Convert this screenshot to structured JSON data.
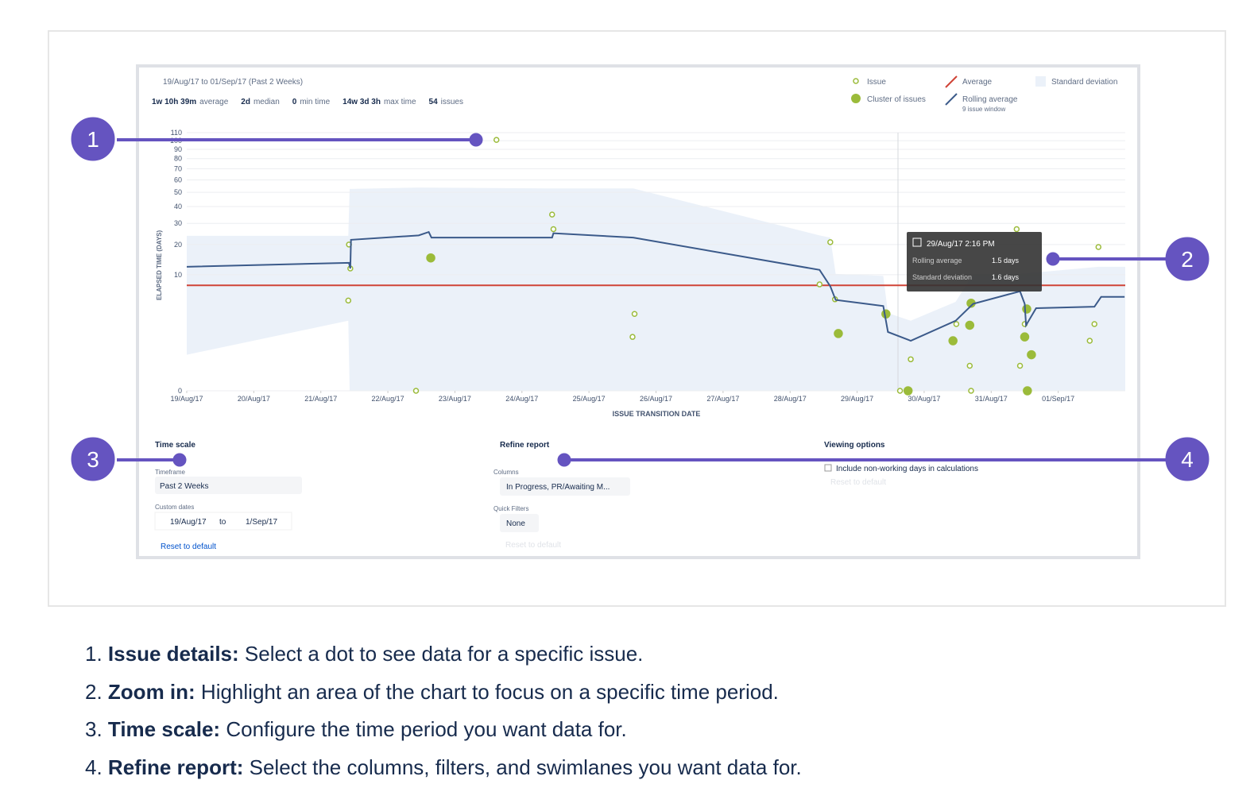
{
  "chart_data": {
    "type": "control",
    "subtitle": "19/Aug/17 to 01/Sep/17 (Past 2 Weeks)",
    "stats": [
      {
        "value": "1w 10h 39m",
        "label": "average"
      },
      {
        "value": "2d",
        "label": "median"
      },
      {
        "value": "0",
        "label": "min time"
      },
      {
        "value": "14w 3d 3h",
        "label": "max time"
      },
      {
        "value": "54",
        "label": "issues"
      }
    ],
    "y_label": "ELAPSED TIME (DAYS)",
    "x_label": "ISSUE TRANSITION DATE",
    "y_scale": "cube-root",
    "ylim": [
      0,
      110
    ],
    "yticks": [
      0,
      10,
      20,
      30,
      40,
      50,
      60,
      70,
      80,
      90,
      100,
      110
    ],
    "xlim": [
      0,
      14
    ],
    "xticks": [
      {
        "value": 0,
        "label": "19/Aug/17"
      },
      {
        "value": 1,
        "label": "20/Aug/17"
      },
      {
        "value": 2,
        "label": "21/Aug/17"
      },
      {
        "value": 3,
        "label": "22/Aug/17"
      },
      {
        "value": 4,
        "label": "23/Aug/17"
      },
      {
        "value": 5,
        "label": "24/Aug/17"
      },
      {
        "value": 6,
        "label": "25/Aug/17"
      },
      {
        "value": 7,
        "label": "26/Aug/17"
      },
      {
        "value": 8,
        "label": "27/Aug/17"
      },
      {
        "value": 9,
        "label": "28/Aug/17"
      },
      {
        "value": 10,
        "label": "29/Aug/17"
      },
      {
        "value": 11,
        "label": "30/Aug/17"
      },
      {
        "value": 12,
        "label": "31/Aug/17"
      },
      {
        "value": 13,
        "label": "01/Sep/17"
      }
    ],
    "grid": true,
    "series": [
      {
        "name": "Issue",
        "color": "#9bbb3a",
        "x": [
          4.62,
          2.42,
          2.44,
          2.41,
          3.42,
          5.45,
          5.47,
          6.68,
          6.65,
          9.6,
          9.44,
          9.67,
          10.8,
          10.64,
          11.48,
          11.68,
          11.7,
          12.38,
          12.5,
          12.43,
          13.6,
          13.54,
          13.47
        ],
        "values": [
          101,
          20,
          11.7,
          4.7,
          0,
          35,
          27,
          2.9,
          1,
          21,
          7.7,
          4.9,
          0.2,
          0,
          1.9,
          0.1,
          0,
          27,
          1.9,
          0.1,
          19,
          1.9,
          0.8
        ]
      },
      {
        "name": "Cluster of issues",
        "color": "#9bbb3a",
        "x": [
          3.64,
          9.72,
          10.43,
          10.76,
          11.43,
          11.68,
          11.7,
          12.5,
          12.53,
          12.6,
          12.54
        ],
        "values": [
          15,
          1.2,
          2.9,
          0,
          0.8,
          1.8,
          4.3,
          1,
          3.5,
          0.3,
          0
        ]
      },
      {
        "name": "Rolling average",
        "subtitle": "9 issue window",
        "color": "#3b5a8a",
        "x": [
          0,
          2.42,
          2.44,
          2.45,
          3.46,
          3.61,
          3.65,
          5.45,
          5.47,
          6.66,
          9.44,
          9.6,
          9.68,
          10.39,
          10.46,
          10.8,
          11.47,
          11.73,
          12.43,
          12.5,
          12.52,
          12.67,
          13.54,
          13.64,
          13.99
        ],
        "values": [
          12.2,
          13.4,
          11.7,
          22,
          24,
          25.6,
          23,
          23,
          25,
          23,
          11.3,
          7.3,
          4.8,
          3.9,
          1.3,
          0.8,
          2.2,
          4.2,
          6.3,
          4.2,
          1.8,
          3.6,
          3.8,
          5.3,
          5.3
        ]
      }
    ],
    "average": {
      "name": "Average",
      "color": "#d04437",
      "value": 7.5
    },
    "band": {
      "name": "Standard deviation",
      "color": "#ebf1f9",
      "x": [
        0,
        2.41,
        2.43,
        3.46,
        5.45,
        6.66,
        9.44,
        9.6,
        9.68,
        10.39,
        10.46,
        10.8,
        11.47,
        11.73,
        12.43,
        13.6,
        14
      ],
      "upper": [
        23.8,
        23.8,
        52.6,
        53.7,
        53,
        53,
        24,
        23,
        10.2,
        9.7,
        3,
        2.2,
        4.5,
        10.2,
        10.2,
        12.2,
        12.2
      ],
      "lower": [
        0.3,
        2.2,
        0,
        0,
        0,
        0,
        0,
        0,
        0,
        0,
        0,
        0,
        0,
        0,
        0,
        0,
        0
      ]
    },
    "tooltip": {
      "date": "29/Aug/17 2:16 PM",
      "rows": [
        {
          "label": "Rolling average",
          "value": "1.5 days"
        },
        {
          "label": "Standard deviation",
          "value": "1.6 days"
        }
      ]
    }
  },
  "controls": {
    "time_scale": {
      "title": "Time scale",
      "timeframe_label": "Timeframe",
      "timeframe": "Past 2 Weeks",
      "custom_label": "Custom dates",
      "from": "19/Aug/17",
      "to_word": "to",
      "to": "1/Sep/17",
      "reset": "Reset to default"
    },
    "refine": {
      "title": "Refine report",
      "columns_label": "Columns",
      "columns": "In Progress, PR/Awaiting M...",
      "filters_label": "Quick Filters",
      "filters": "None",
      "reset": "Reset to default"
    },
    "viewing": {
      "title": "Viewing options",
      "checkbox": "Include non-working days in calculations",
      "reset": "Reset to default"
    }
  },
  "callouts": [
    "1",
    "2",
    "3",
    "4"
  ],
  "list": [
    {
      "number": "1.",
      "term": "Issue details:",
      "text": "Select a dot to see data for a specific issue."
    },
    {
      "number": "2.",
      "term": "Zoom in:",
      "text": "Highlight an area of the chart to focus on a specific time period."
    },
    {
      "number": "3.",
      "term": "Time scale:",
      "text": "Configure the time period you want data for."
    },
    {
      "number": "4.",
      "term": "Refine report:",
      "text": "Select the columns, filters, and swimlanes you want data for."
    }
  ]
}
